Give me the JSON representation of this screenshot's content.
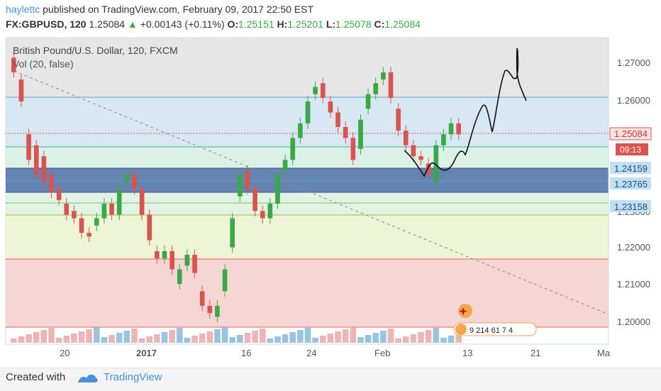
{
  "header": {
    "username": "haylettc",
    "published_text": "published on TradingView.com, February 09, 2017 22:50 EST",
    "symbol": "FX:GBPUSD, 120",
    "last": "1.25084",
    "change": "+0.00143 (+0.11%)",
    "open_label": "O:",
    "open": "1.25151",
    "high_label": "H:",
    "high": "1.25201",
    "low_label": "L:",
    "low": "1.25078",
    "close_label": "C:",
    "close": "1.25084"
  },
  "chart": {
    "title": "British Pound/U.S. Dollar, 120, FXCM",
    "indicator": "Vol (20, false)",
    "price_axis_labels": [
      "1.27000",
      "1.26000",
      "1.22000",
      "1.21000",
      "1.20000",
      "1.23000"
    ],
    "tags": {
      "current_price": "1.25084",
      "countdown": "09:13",
      "level_1": "1.24159",
      "level_2": "1.23765",
      "level_3": "1.23158"
    },
    "time_axis_labels": [
      "20",
      "2017",
      "16",
      "24",
      "Feb",
      "13",
      "21",
      "Ma"
    ],
    "events_badge": "9 214 61 7 4",
    "colors": {
      "up": "#3aa847",
      "down": "#d9534f",
      "accent": "#4a90d9",
      "zone_dark": "#4a6fa5"
    }
  },
  "chart_data": {
    "type": "candlestick",
    "title": "British Pound/U.S. Dollar, 120, FXCM",
    "x_ticks": [
      "20",
      "2017",
      "16",
      "24",
      "Feb",
      "13",
      "21",
      "Ma"
    ],
    "ylim": [
      1.1935,
      1.2775
    ],
    "y_ticks": [
      1.2,
      1.21,
      1.22,
      1.23,
      1.26,
      1.27
    ],
    "path_points": [
      [
        1.272,
        1.268
      ],
      [
        1.266,
        1.26
      ],
      [
        1.251,
        1.244
      ],
      [
        1.248,
        1.24
      ],
      [
        1.245,
        1.238
      ],
      [
        1.24,
        1.235
      ],
      [
        1.236,
        1.233
      ],
      [
        1.232,
        1.229
      ],
      [
        1.23,
        1.228
      ],
      [
        1.228,
        1.224
      ],
      [
        1.224,
        1.223
      ],
      [
        1.226,
        1.228
      ],
      [
        1.228,
        1.232
      ],
      [
        1.232,
        1.229
      ],
      [
        1.229,
        1.236
      ],
      [
        1.238,
        1.24
      ],
      [
        1.24,
        1.236
      ],
      [
        1.236,
        1.229
      ],
      [
        1.229,
        1.222
      ],
      [
        1.219,
        1.217
      ],
      [
        1.217,
        1.219
      ],
      [
        1.219,
        1.214
      ],
      [
        1.21,
        1.214
      ],
      [
        1.215,
        1.218
      ],
      [
        1.218,
        1.213
      ],
      [
        1.208,
        1.204
      ],
      [
        1.204,
        1.202
      ],
      [
        1.201,
        1.204
      ],
      [
        1.208,
        1.214
      ],
      [
        1.22,
        1.228
      ],
      [
        1.234,
        1.24
      ],
      [
        1.241,
        1.236
      ],
      [
        1.236,
        1.23
      ],
      [
        1.23,
        1.228
      ],
      [
        1.228,
        1.232
      ],
      [
        1.232,
        1.24
      ],
      [
        1.241,
        1.244
      ],
      [
        1.244,
        1.25
      ],
      [
        1.25,
        1.254
      ],
      [
        1.254,
        1.26
      ],
      [
        1.262,
        1.264
      ],
      [
        1.265,
        1.261
      ],
      [
        1.26,
        1.257
      ],
      [
        1.257,
        1.253
      ],
      [
        1.253,
        1.25
      ],
      [
        1.25,
        1.244
      ],
      [
        1.247,
        1.255
      ],
      [
        1.258,
        1.262
      ],
      [
        1.262,
        1.265
      ],
      [
        1.266,
        1.268
      ],
      [
        1.268,
        1.261
      ],
      [
        1.258,
        1.252
      ],
      [
        1.252,
        1.248
      ],
      [
        1.248,
        1.245
      ],
      [
        1.245,
        1.244
      ],
      [
        1.243,
        1.24
      ],
      [
        1.238,
        1.248
      ],
      [
        1.248,
        1.251
      ],
      [
        1.251,
        1.254
      ],
      [
        1.254,
        1.251
      ]
    ]
  }
}
